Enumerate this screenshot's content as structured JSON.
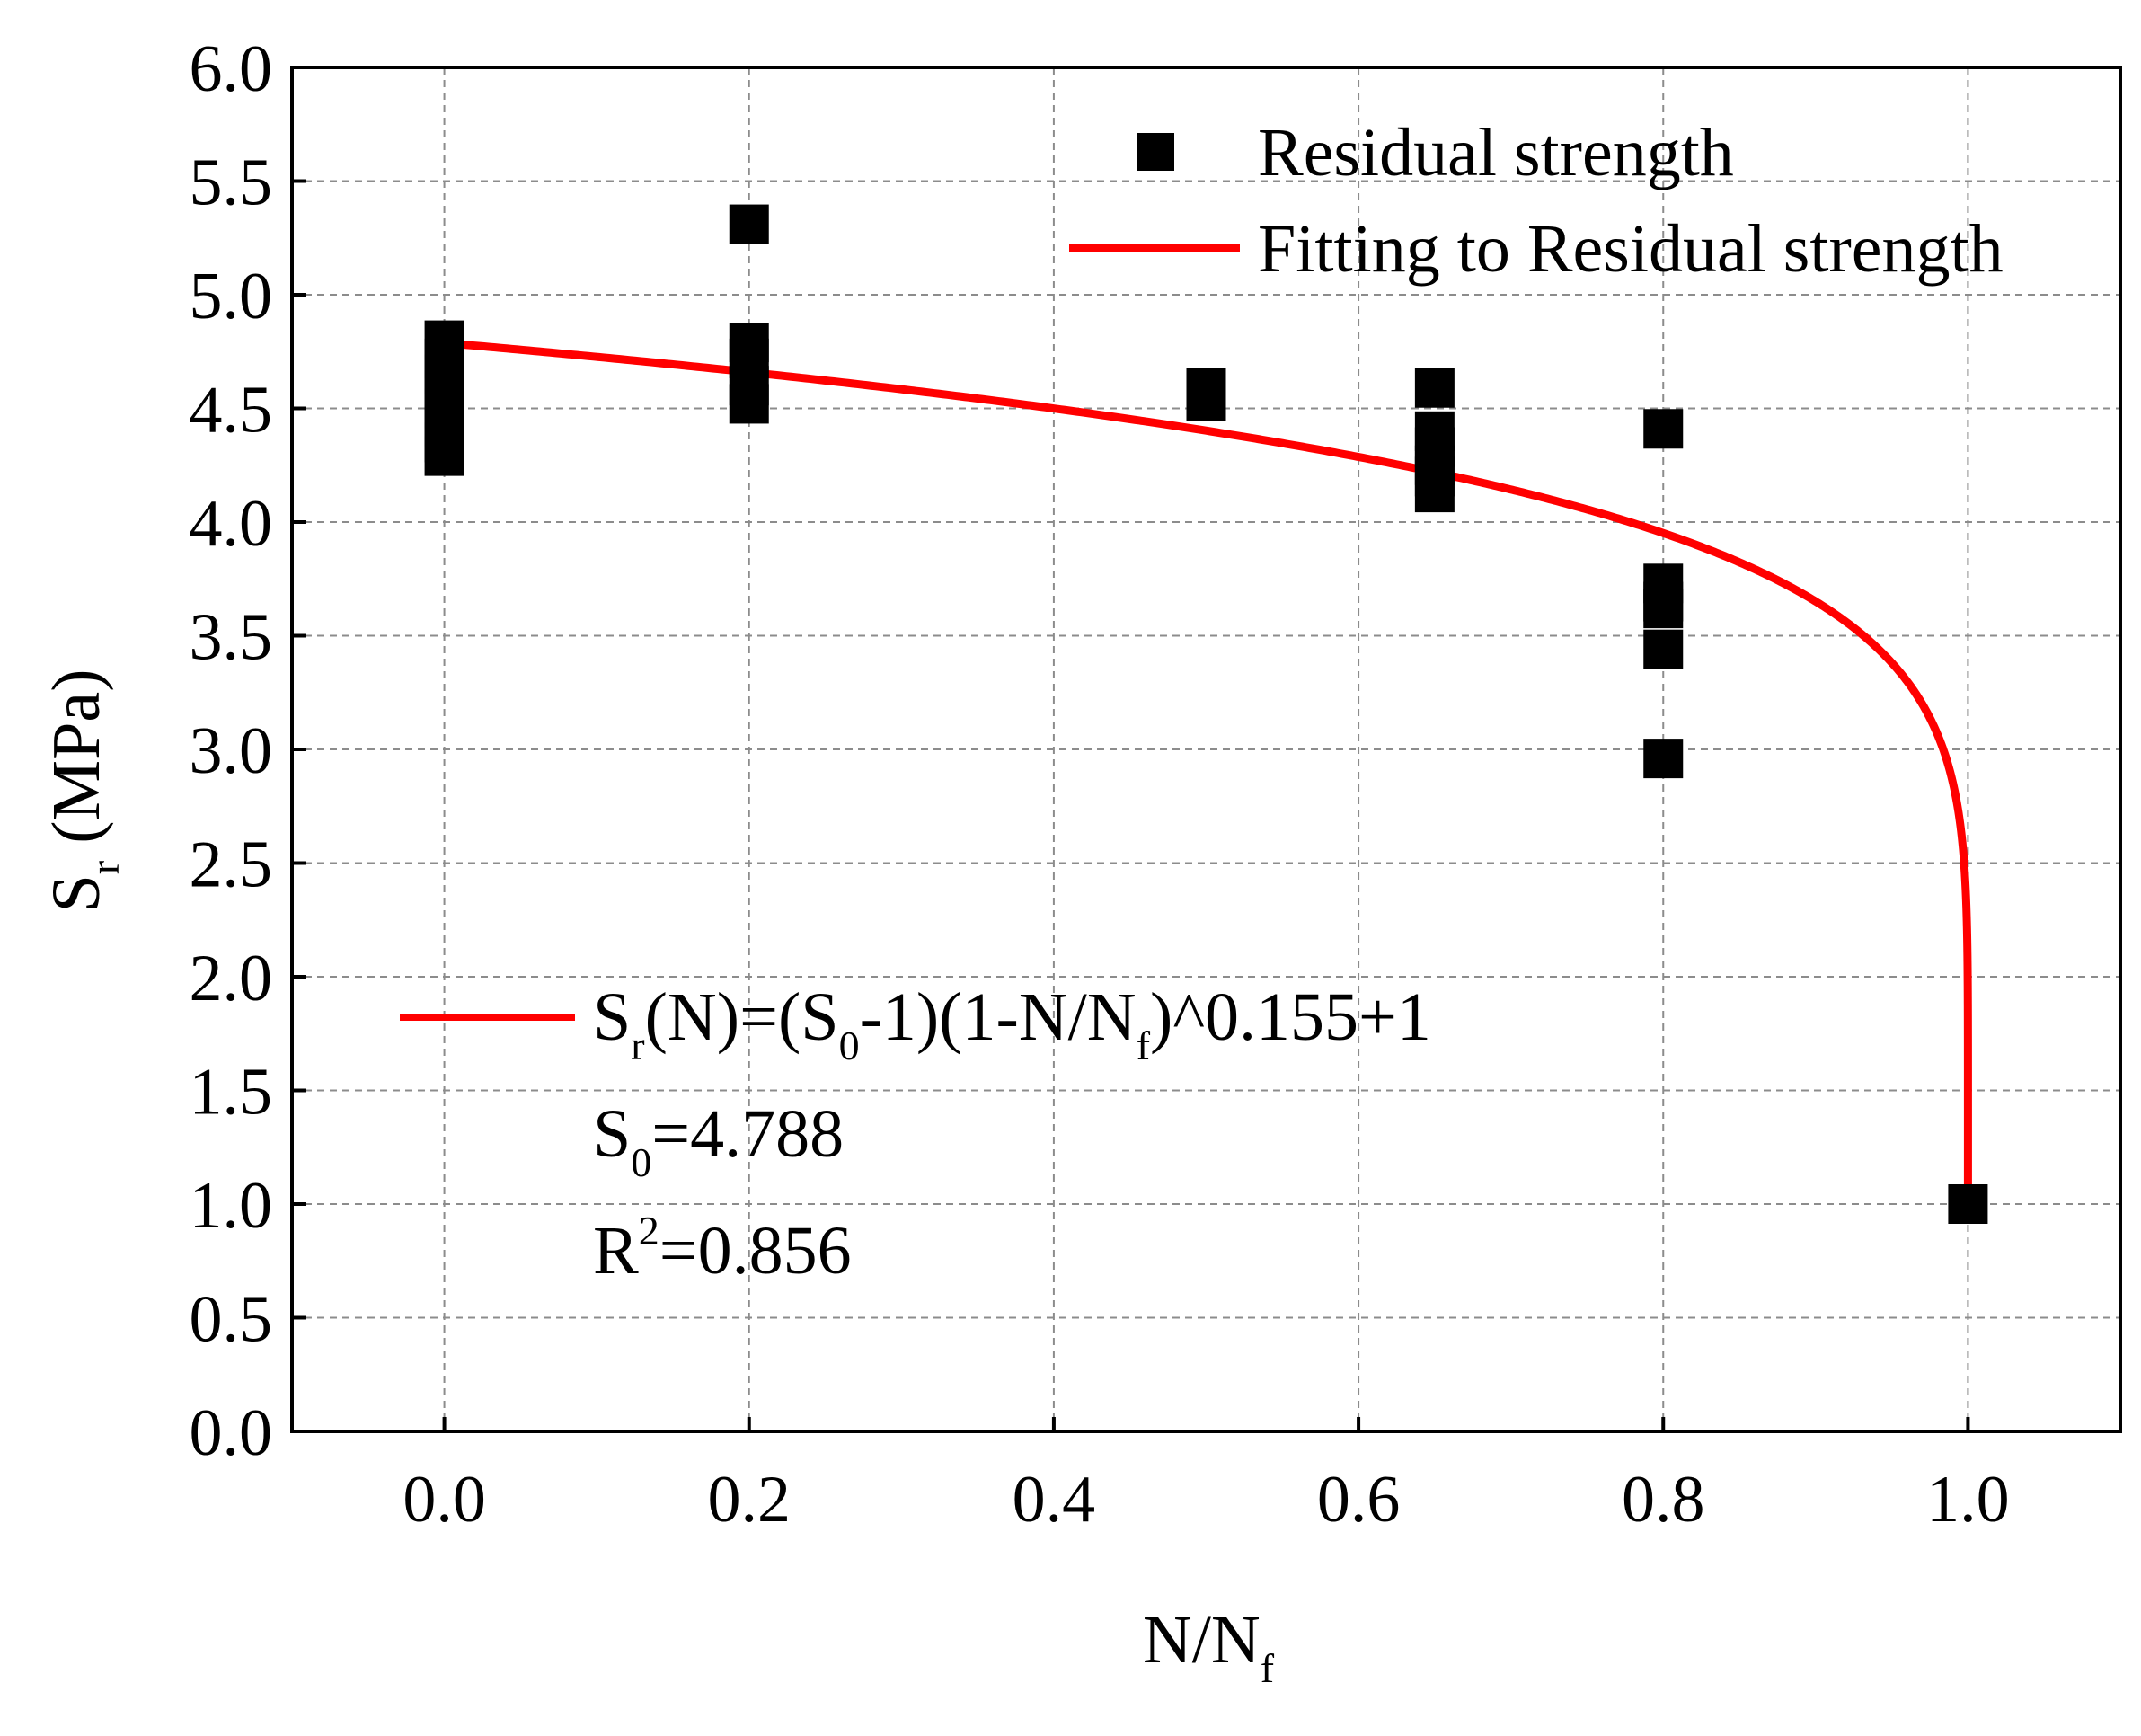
{
  "chart_data": {
    "type": "scatter",
    "title": "",
    "xlabel": {
      "main": "N/N",
      "sub": "f"
    },
    "ylabel": {
      "main": "S",
      "sub": "r",
      "unit": " (MPa)"
    },
    "xlim": [
      -0.1,
      1.1
    ],
    "ylim": [
      0.0,
      6.0
    ],
    "xticks": [
      0.0,
      0.2,
      0.4,
      0.6,
      0.8,
      1.0
    ],
    "xtick_labels": [
      "0.0",
      "0.2",
      "0.4",
      "0.6",
      "0.8",
      "1.0"
    ],
    "yticks": [
      0.0,
      0.5,
      1.0,
      1.5,
      2.0,
      2.5,
      3.0,
      3.5,
      4.0,
      4.5,
      5.0,
      5.5,
      6.0
    ],
    "ytick_labels": [
      "0.0",
      "0.5",
      "1.0",
      "1.5",
      "2.0",
      "2.5",
      "3.0",
      "3.5",
      "4.0",
      "4.5",
      "5.0",
      "5.5",
      "6.0"
    ],
    "grid": true,
    "series": [
      {
        "name": "Residual strength",
        "kind": "scatter",
        "marker": "square",
        "color": "#000000",
        "points": [
          {
            "x": 0.0,
            "y": 4.8
          },
          {
            "x": 0.0,
            "y": 4.72
          },
          {
            "x": 0.0,
            "y": 4.65
          },
          {
            "x": 0.0,
            "y": 4.58
          },
          {
            "x": 0.0,
            "y": 4.5
          },
          {
            "x": 0.0,
            "y": 4.42
          },
          {
            "x": 0.0,
            "y": 4.35
          },
          {
            "x": 0.0,
            "y": 4.29
          },
          {
            "x": 0.2,
            "y": 5.31
          },
          {
            "x": 0.2,
            "y": 4.79
          },
          {
            "x": 0.2,
            "y": 4.72
          },
          {
            "x": 0.2,
            "y": 4.6
          },
          {
            "x": 0.2,
            "y": 4.52
          },
          {
            "x": 0.5,
            "y": 4.59
          },
          {
            "x": 0.5,
            "y": 4.53
          },
          {
            "x": 0.65,
            "y": 4.59
          },
          {
            "x": 0.65,
            "y": 4.4
          },
          {
            "x": 0.65,
            "y": 4.33
          },
          {
            "x": 0.65,
            "y": 4.25
          },
          {
            "x": 0.65,
            "y": 4.2
          },
          {
            "x": 0.65,
            "y": 4.13
          },
          {
            "x": 0.8,
            "y": 4.41
          },
          {
            "x": 0.8,
            "y": 3.73
          },
          {
            "x": 0.8,
            "y": 3.65
          },
          {
            "x": 0.8,
            "y": 3.62
          },
          {
            "x": 0.8,
            "y": 3.44
          },
          {
            "x": 0.8,
            "y": 2.96
          },
          {
            "x": 1.0,
            "y": 1.0
          }
        ]
      },
      {
        "name": "Fitting to Residual strength",
        "kind": "line",
        "color": "#ff0000",
        "model": {
          "S0": 4.788,
          "exponent": 0.155,
          "offset": 1
        },
        "x_range": [
          0.0,
          1.0
        ]
      }
    ],
    "legend": {
      "position": "top-right",
      "entries": [
        "Residual strength",
        "Fitting to Residual strength"
      ]
    },
    "annotation": {
      "position": "middle-left",
      "formula_parts": [
        "S",
        "r",
        "(N)=(S",
        "0",
        "-1)(1-N/N",
        "f",
        ")^0.155+1"
      ],
      "s0_parts": [
        "S",
        "0",
        "=4.788"
      ],
      "r2_parts": [
        "R",
        "2",
        "=0.856"
      ]
    }
  }
}
